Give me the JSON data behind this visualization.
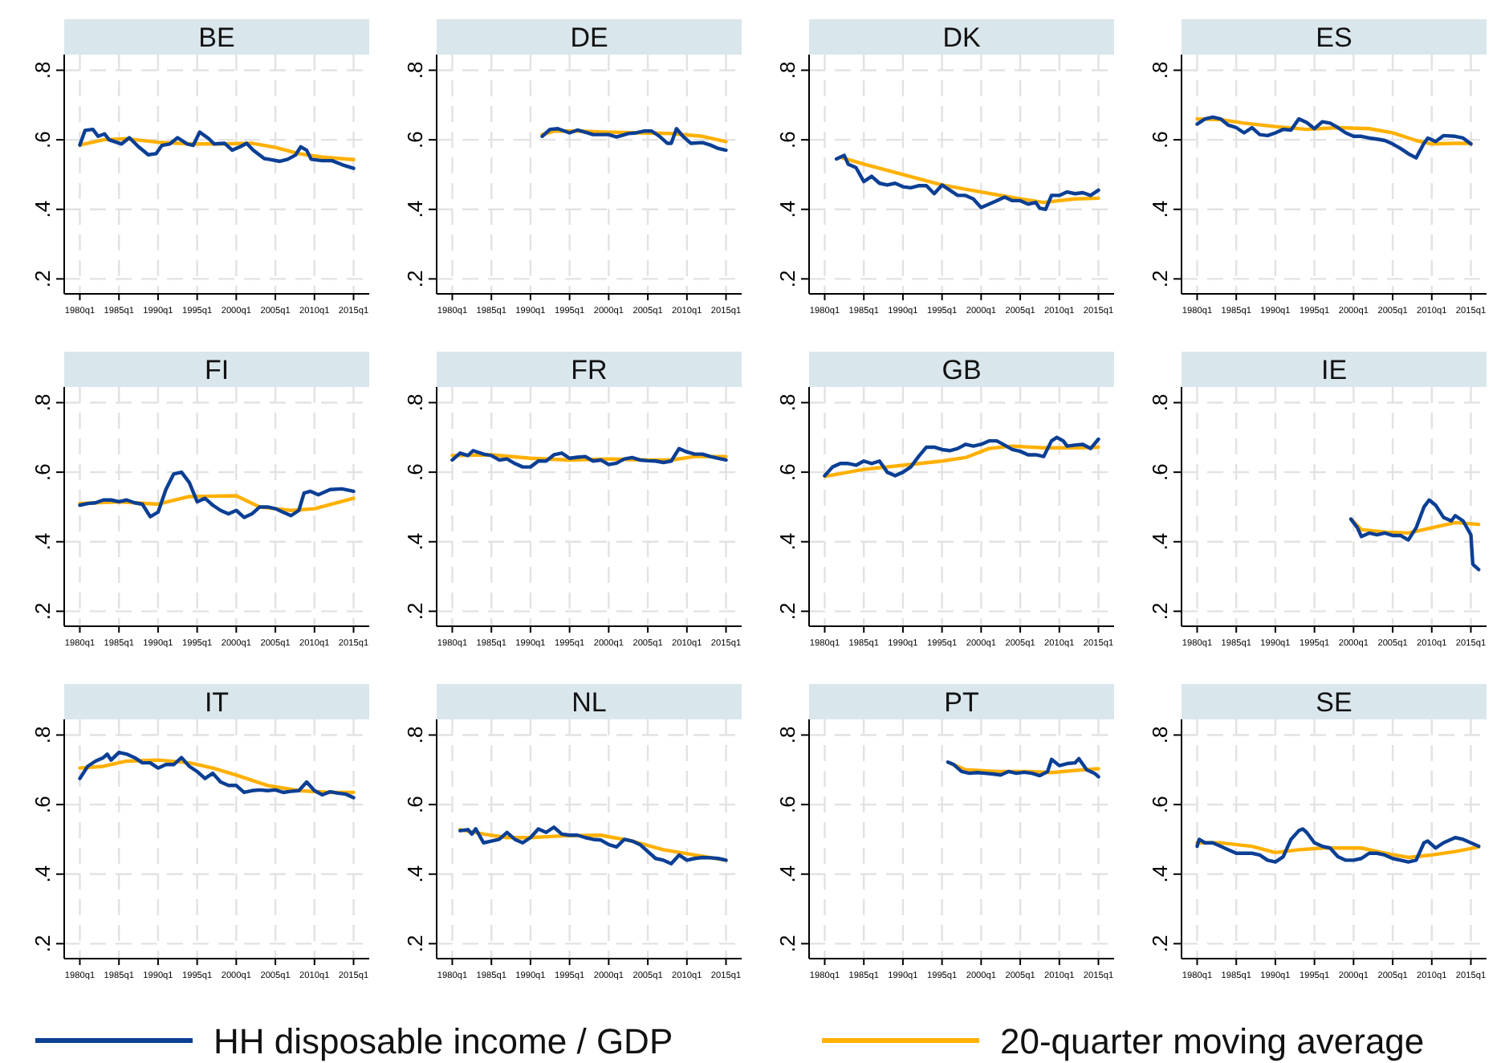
{
  "chart_data": [
    {
      "type": "line",
      "title": "BE",
      "xlim": [
        "1978-01",
        "2017-01"
      ],
      "ylim": [
        0.157,
        0.845
      ],
      "xticks": [
        {
          "value": "1980-01",
          "label": "1980q1"
        },
        {
          "value": "1985-01",
          "label": "1985q1"
        },
        {
          "value": "1990-01",
          "label": "1990q1"
        },
        {
          "value": "1995-01",
          "label": "1995q1"
        },
        {
          "value": "2000-01",
          "label": "2000q1"
        },
        {
          "value": "2005-01",
          "label": "2005q1"
        },
        {
          "value": "2010-01",
          "label": "2010q1"
        },
        {
          "value": "2015-01",
          "label": "2015q1"
        }
      ],
      "yticks": [
        {
          "value": 0.2,
          "label": ".2"
        },
        {
          "value": 0.4,
          "label": ".4"
        },
        {
          "value": 0.6,
          "label": ".6"
        },
        {
          "value": 0.8,
          "label": ".8"
        }
      ],
      "grid": true,
      "series": [
        {
          "color": "#0b3f94",
          "x": [
            "1980-01",
            "1980-09",
            "1981-09",
            "1982-05",
            "1983-03",
            "1983-10",
            "1985-05",
            "1986-05",
            "1987-07",
            "1988-10",
            "1989-10",
            "1990-07",
            "1991-07",
            "1992-07",
            "1993-10",
            "1994-07",
            "1995-05",
            "1996-07",
            "1997-03",
            "1998-07",
            "1999-07",
            "2000-07",
            "2001-05",
            "2002-03",
            "2003-08",
            "2004-03",
            "2005-08",
            "2006-08",
            "2007-08",
            "2008-04",
            "2009-01",
            "2009-08",
            "2011-01",
            "2012-04",
            "2013-08",
            "2015-01"
          ],
          "values": [
            0.585,
            0.627,
            0.63,
            0.61,
            0.617,
            0.6,
            0.588,
            0.606,
            0.58,
            0.557,
            0.56,
            0.584,
            0.588,
            0.606,
            0.588,
            0.584,
            0.622,
            0.603,
            0.588,
            0.59,
            0.57,
            0.58,
            0.59,
            0.57,
            0.546,
            0.544,
            0.538,
            0.544,
            0.556,
            0.58,
            0.57,
            0.544,
            0.54,
            0.54,
            0.528,
            0.518
          ]
        },
        {
          "color": "#ffb000",
          "x": [
            "1980-01",
            "1983-01",
            "1986-01",
            "1990-01",
            "1994-01",
            "1998-01",
            "2002-01",
            "2005-01",
            "2008-01",
            "2011-01",
            "2015-01"
          ],
          "values": [
            0.585,
            0.6,
            0.603,
            0.593,
            0.588,
            0.588,
            0.59,
            0.578,
            0.56,
            0.55,
            0.543
          ]
        }
      ]
    },
    {
      "type": "line",
      "title": "DE",
      "xlim": [
        "1978-01",
        "2017-01"
      ],
      "ylim": [
        0.157,
        0.845
      ],
      "xticks": [
        {
          "value": "1980-01",
          "label": "1980q1"
        },
        {
          "value": "1985-01",
          "label": "1985q1"
        },
        {
          "value": "1990-01",
          "label": "1990q1"
        },
        {
          "value": "1995-01",
          "label": "1995q1"
        },
        {
          "value": "2000-01",
          "label": "2000q1"
        },
        {
          "value": "2005-01",
          "label": "2005q1"
        },
        {
          "value": "2010-01",
          "label": "2010q1"
        },
        {
          "value": "2015-01",
          "label": "2015q1"
        }
      ],
      "yticks": [
        {
          "value": 0.2,
          "label": ".2"
        },
        {
          "value": 0.4,
          "label": ".4"
        },
        {
          "value": 0.6,
          "label": ".6"
        },
        {
          "value": 0.8,
          "label": ".8"
        }
      ],
      "grid": true,
      "series": [
        {
          "color": "#0b3f94",
          "x": [
            "1991-07",
            "1992-07",
            "1993-07",
            "1995-01",
            "1996-01",
            "1997-01",
            "1998-01",
            "2000-01",
            "2001-01",
            "2002-07",
            "2003-07",
            "2004-07",
            "2005-07",
            "2006-07",
            "2007-07",
            "2008-01",
            "2008-09",
            "2009-07",
            "2010-07",
            "2012-01",
            "2013-01",
            "2014-01",
            "2015-01"
          ],
          "values": [
            0.61,
            0.63,
            0.632,
            0.62,
            0.628,
            0.622,
            0.615,
            0.615,
            0.608,
            0.618,
            0.62,
            0.625,
            0.625,
            0.61,
            0.59,
            0.59,
            0.632,
            0.61,
            0.59,
            0.592,
            0.585,
            0.575,
            0.57
          ]
        },
        {
          "color": "#ffb000",
          "x": [
            "1991-07",
            "1993-01",
            "1996-01",
            "2000-01",
            "2004-01",
            "2008-01",
            "2012-01",
            "2015-01"
          ],
          "values": [
            0.615,
            0.625,
            0.625,
            0.622,
            0.62,
            0.618,
            0.61,
            0.595
          ]
        }
      ]
    },
    {
      "type": "line",
      "title": "DK",
      "xlim": [
        "1978-01",
        "2017-01"
      ],
      "ylim": [
        0.157,
        0.845
      ],
      "xticks": [
        {
          "value": "1980-01",
          "label": "1980q1"
        },
        {
          "value": "1985-01",
          "label": "1985q1"
        },
        {
          "value": "1990-01",
          "label": "1990q1"
        },
        {
          "value": "1995-01",
          "label": "1995q1"
        },
        {
          "value": "2000-01",
          "label": "2000q1"
        },
        {
          "value": "2005-01",
          "label": "2005q1"
        },
        {
          "value": "2010-01",
          "label": "2010q1"
        },
        {
          "value": "2015-01",
          "label": "2015q1"
        }
      ],
      "yticks": [
        {
          "value": 0.2,
          "label": ".2"
        },
        {
          "value": 0.4,
          "label": ".4"
        },
        {
          "value": 0.6,
          "label": ".6"
        },
        {
          "value": 0.8,
          "label": ".8"
        }
      ],
      "grid": true,
      "series": [
        {
          "color": "#0b3f94",
          "x": [
            "1981-07",
            "1982-07",
            "1983-01",
            "1984-01",
            "1985-01",
            "1986-01",
            "1987-01",
            "1988-01",
            "1989-01",
            "1990-01",
            "1991-01",
            "1992-01",
            "1993-01",
            "1994-01",
            "1995-01",
            "1996-01",
            "1997-01",
            "1998-01",
            "1999-01",
            "2000-01",
            "2001-01",
            "2002-01",
            "2003-01",
            "2004-01",
            "2005-01",
            "2006-01",
            "2007-01",
            "2007-07",
            "2008-04",
            "2009-01",
            "2010-01",
            "2011-01",
            "2012-01",
            "2013-01",
            "2014-01",
            "2015-01"
          ],
          "values": [
            0.545,
            0.555,
            0.53,
            0.52,
            0.48,
            0.495,
            0.475,
            0.47,
            0.475,
            0.465,
            0.462,
            0.468,
            0.468,
            0.445,
            0.47,
            0.455,
            0.44,
            0.44,
            0.43,
            0.405,
            0.415,
            0.425,
            0.435,
            0.425,
            0.425,
            0.415,
            0.42,
            0.403,
            0.4,
            0.44,
            0.44,
            0.45,
            0.445,
            0.448,
            0.44,
            0.455
          ]
        },
        {
          "color": "#ffb000",
          "x": [
            "1982-01",
            "1985-01",
            "1990-01",
            "1995-01",
            "2000-01",
            "2005-01",
            "2008-01",
            "2012-01",
            "2015-01"
          ],
          "values": [
            0.55,
            0.53,
            0.5,
            0.47,
            0.45,
            0.43,
            0.42,
            0.43,
            0.432
          ]
        }
      ]
    },
    {
      "type": "line",
      "title": "ES",
      "xlim": [
        "1978-01",
        "2017-01"
      ],
      "ylim": [
        0.157,
        0.845
      ],
      "xticks": [
        {
          "value": "1980-01",
          "label": "1980q1"
        },
        {
          "value": "1985-01",
          "label": "1985q1"
        },
        {
          "value": "1990-01",
          "label": "1990q1"
        },
        {
          "value": "1995-01",
          "label": "1995q1"
        },
        {
          "value": "2000-01",
          "label": "2000q1"
        },
        {
          "value": "2005-01",
          "label": "2005q1"
        },
        {
          "value": "2010-01",
          "label": "2010q1"
        },
        {
          "value": "2015-01",
          "label": "2015q1"
        }
      ],
      "yticks": [
        {
          "value": 0.2,
          "label": ".2"
        },
        {
          "value": 0.4,
          "label": ".4"
        },
        {
          "value": 0.6,
          "label": ".6"
        },
        {
          "value": 0.8,
          "label": ".8"
        }
      ],
      "grid": true,
      "series": [
        {
          "color": "#0b3f94",
          "x": [
            "1980-01",
            "1981-01",
            "1982-01",
            "1983-01",
            "1984-01",
            "1985-01",
            "1986-01",
            "1987-01",
            "1988-01",
            "1989-01",
            "1990-01",
            "1991-01",
            "1992-01",
            "1993-01",
            "1994-01",
            "1995-01",
            "1996-01",
            "1997-01",
            "1998-01",
            "1999-01",
            "2000-01",
            "2001-01",
            "2002-01",
            "2003-01",
            "2004-01",
            "2005-01",
            "2006-01",
            "2007-01",
            "2008-01",
            "2009-01",
            "2009-07",
            "2010-07",
            "2011-07",
            "2013-01",
            "2014-01",
            "2015-01"
          ],
          "values": [
            0.645,
            0.66,
            0.665,
            0.66,
            0.642,
            0.635,
            0.62,
            0.635,
            0.615,
            0.612,
            0.62,
            0.63,
            0.628,
            0.66,
            0.65,
            0.632,
            0.652,
            0.648,
            0.635,
            0.62,
            0.61,
            0.61,
            0.605,
            0.602,
            0.598,
            0.588,
            0.575,
            0.56,
            0.548,
            0.59,
            0.605,
            0.595,
            0.612,
            0.61,
            0.605,
            0.588
          ]
        },
        {
          "color": "#ffb000",
          "x": [
            "1980-01",
            "1983-01",
            "1986-01",
            "1990-01",
            "1994-01",
            "1998-01",
            "2002-01",
            "2005-01",
            "2008-01",
            "2010-01",
            "2013-01",
            "2015-01"
          ],
          "values": [
            0.66,
            0.658,
            0.648,
            0.638,
            0.63,
            0.635,
            0.632,
            0.62,
            0.598,
            0.588,
            0.59,
            0.59
          ]
        }
      ]
    },
    {
      "type": "line",
      "title": "FI",
      "xlim": [
        "1978-01",
        "2017-01"
      ],
      "ylim": [
        0.157,
        0.845
      ],
      "xticks": [
        {
          "value": "1980-01",
          "label": "1980q1"
        },
        {
          "value": "1985-01",
          "label": "1985q1"
        },
        {
          "value": "1990-01",
          "label": "1990q1"
        },
        {
          "value": "1995-01",
          "label": "1995q1"
        },
        {
          "value": "2000-01",
          "label": "2000q1"
        },
        {
          "value": "2005-01",
          "label": "2005q1"
        },
        {
          "value": "2010-01",
          "label": "2010q1"
        },
        {
          "value": "2015-01",
          "label": "2015q1"
        }
      ],
      "yticks": [
        {
          "value": 0.2,
          "label": ".2"
        },
        {
          "value": 0.4,
          "label": ".4"
        },
        {
          "value": 0.6,
          "label": ".6"
        },
        {
          "value": 0.8,
          "label": ".8"
        }
      ],
      "grid": true,
      "series": [
        {
          "color": "#0b3f94",
          "x": [
            "1980-01",
            "1981-01",
            "1982-01",
            "1983-01",
            "1984-01",
            "1985-01",
            "1986-01",
            "1987-01",
            "1988-01",
            "1989-01",
            "1990-01",
            "1991-01",
            "1992-01",
            "1993-01",
            "1994-01",
            "1995-01",
            "1996-01",
            "1997-01",
            "1998-01",
            "1999-01",
            "2000-01",
            "2001-01",
            "2002-01",
            "2003-01",
            "2004-01",
            "2005-01",
            "2006-01",
            "2007-01",
            "2008-01",
            "2008-09",
            "2009-07",
            "2010-07",
            "2012-01",
            "2013-07",
            "2015-01"
          ],
          "values": [
            0.505,
            0.51,
            0.512,
            0.52,
            0.52,
            0.515,
            0.52,
            0.512,
            0.508,
            0.472,
            0.485,
            0.55,
            0.595,
            0.6,
            0.57,
            0.515,
            0.525,
            0.505,
            0.49,
            0.48,
            0.49,
            0.47,
            0.48,
            0.5,
            0.5,
            0.495,
            0.485,
            0.475,
            0.49,
            0.54,
            0.545,
            0.535,
            0.55,
            0.552,
            0.545
          ]
        },
        {
          "color": "#ffb000",
          "x": [
            "1980-01",
            "1985-01",
            "1990-01",
            "1994-01",
            "2000-01",
            "2003-01",
            "2007-01",
            "2010-01",
            "2015-01"
          ],
          "values": [
            0.51,
            0.515,
            0.508,
            0.53,
            0.532,
            0.5,
            0.49,
            0.495,
            0.525
          ]
        }
      ]
    },
    {
      "type": "line",
      "title": "FR",
      "xlim": [
        "1978-01",
        "2017-01"
      ],
      "ylim": [
        0.157,
        0.845
      ],
      "xticks": [
        {
          "value": "1980-01",
          "label": "1980q1"
        },
        {
          "value": "1985-01",
          "label": "1985q1"
        },
        {
          "value": "1990-01",
          "label": "1990q1"
        },
        {
          "value": "1995-01",
          "label": "1995q1"
        },
        {
          "value": "2000-01",
          "label": "2000q1"
        },
        {
          "value": "2005-01",
          "label": "2005q1"
        },
        {
          "value": "2010-01",
          "label": "2010q1"
        },
        {
          "value": "2015-01",
          "label": "2015q1"
        }
      ],
      "yticks": [
        {
          "value": 0.2,
          "label": ".2"
        },
        {
          "value": 0.4,
          "label": ".4"
        },
        {
          "value": 0.6,
          "label": ".6"
        },
        {
          "value": 0.8,
          "label": ".8"
        }
      ],
      "grid": true,
      "series": [
        {
          "color": "#0b3f94",
          "x": [
            "1980-01",
            "1981-01",
            "1982-01",
            "1982-09",
            "1984-01",
            "1985-01",
            "1986-01",
            "1987-01",
            "1988-01",
            "1989-01",
            "1990-01",
            "1991-01",
            "1992-01",
            "1993-01",
            "1994-01",
            "1995-01",
            "1996-01",
            "1997-01",
            "1998-01",
            "1999-01",
            "2000-01",
            "2001-01",
            "2002-01",
            "2003-01",
            "2004-01",
            "2005-01",
            "2006-01",
            "2007-01",
            "2008-01",
            "2009-01",
            "2010-01",
            "2011-01",
            "2012-01",
            "2013-01",
            "2014-01",
            "2015-01"
          ],
          "values": [
            0.635,
            0.655,
            0.648,
            0.662,
            0.652,
            0.648,
            0.635,
            0.638,
            0.625,
            0.615,
            0.615,
            0.632,
            0.632,
            0.65,
            0.655,
            0.64,
            0.643,
            0.645,
            0.632,
            0.635,
            0.622,
            0.626,
            0.638,
            0.642,
            0.635,
            0.633,
            0.632,
            0.628,
            0.632,
            0.668,
            0.658,
            0.652,
            0.652,
            0.645,
            0.64,
            0.635
          ]
        },
        {
          "color": "#ffb000",
          "x": [
            "1980-01",
            "1985-01",
            "1990-01",
            "1995-01",
            "2000-01",
            "2005-01",
            "2008-01",
            "2011-01",
            "2015-01"
          ],
          "values": [
            0.648,
            0.65,
            0.64,
            0.635,
            0.638,
            0.635,
            0.635,
            0.645,
            0.645
          ]
        }
      ]
    },
    {
      "type": "line",
      "title": "GB",
      "xlim": [
        "1978-01",
        "2017-01"
      ],
      "ylim": [
        0.157,
        0.845
      ],
      "xticks": [
        {
          "value": "1980-01",
          "label": "1980q1"
        },
        {
          "value": "1985-01",
          "label": "1985q1"
        },
        {
          "value": "1990-01",
          "label": "1990q1"
        },
        {
          "value": "1995-01",
          "label": "1995q1"
        },
        {
          "value": "2000-01",
          "label": "2000q1"
        },
        {
          "value": "2005-01",
          "label": "2005q1"
        },
        {
          "value": "2010-01",
          "label": "2010q1"
        },
        {
          "value": "2015-01",
          "label": "2015q1"
        }
      ],
      "yticks": [
        {
          "value": 0.2,
          "label": ".2"
        },
        {
          "value": 0.4,
          "label": ".4"
        },
        {
          "value": 0.6,
          "label": ".6"
        },
        {
          "value": 0.8,
          "label": ".8"
        }
      ],
      "grid": true,
      "series": [
        {
          "color": "#0b3f94",
          "x": [
            "1980-01",
            "1981-01",
            "1982-01",
            "1983-01",
            "1984-01",
            "1985-01",
            "1986-01",
            "1987-01",
            "1988-01",
            "1989-01",
            "1990-01",
            "1991-01",
            "1992-01",
            "1993-01",
            "1994-01",
            "1995-01",
            "1996-01",
            "1997-01",
            "1998-01",
            "1999-01",
            "2000-01",
            "2001-01",
            "2002-01",
            "2003-01",
            "2004-01",
            "2005-01",
            "2006-01",
            "2007-01",
            "2008-01",
            "2009-01",
            "2009-09",
            "2010-07",
            "2011-01",
            "2012-01",
            "2013-01",
            "2014-01",
            "2015-01"
          ],
          "values": [
            0.59,
            0.615,
            0.625,
            0.625,
            0.62,
            0.632,
            0.625,
            0.632,
            0.6,
            0.59,
            0.6,
            0.615,
            0.645,
            0.672,
            0.672,
            0.665,
            0.662,
            0.668,
            0.68,
            0.675,
            0.68,
            0.69,
            0.69,
            0.678,
            0.665,
            0.66,
            0.65,
            0.65,
            0.645,
            0.69,
            0.7,
            0.69,
            0.675,
            0.678,
            0.68,
            0.668,
            0.695
          ]
        },
        {
          "color": "#ffb000",
          "x": [
            "1980-01",
            "1985-01",
            "1990-01",
            "1995-01",
            "1998-01",
            "2001-01",
            "2004-01",
            "2008-01",
            "2012-01",
            "2015-01"
          ],
          "values": [
            0.588,
            0.608,
            0.62,
            0.632,
            0.642,
            0.668,
            0.675,
            0.67,
            0.67,
            0.672
          ]
        }
      ]
    },
    {
      "type": "line",
      "title": "IE",
      "xlim": [
        "1978-01",
        "2017-01"
      ],
      "ylim": [
        0.157,
        0.845
      ],
      "xticks": [
        {
          "value": "1980-01",
          "label": "1980q1"
        },
        {
          "value": "1985-01",
          "label": "1985q1"
        },
        {
          "value": "1990-01",
          "label": "1990q1"
        },
        {
          "value": "1995-01",
          "label": "1995q1"
        },
        {
          "value": "2000-01",
          "label": "2000q1"
        },
        {
          "value": "2005-01",
          "label": "2005q1"
        },
        {
          "value": "2010-01",
          "label": "2010q1"
        },
        {
          "value": "2015-01",
          "label": "2015q1"
        }
      ],
      "yticks": [
        {
          "value": 0.2,
          "label": ".2"
        },
        {
          "value": 0.4,
          "label": ".4"
        },
        {
          "value": 0.6,
          "label": ".6"
        },
        {
          "value": 0.8,
          "label": ".8"
        }
      ],
      "grid": true,
      "series": [
        {
          "color": "#0b3f94",
          "x": [
            "1999-09",
            "2000-07",
            "2001-01",
            "2002-01",
            "2003-01",
            "2004-01",
            "2005-01",
            "2006-01",
            "2007-01",
            "2008-01",
            "2009-01",
            "2009-09",
            "2010-07",
            "2011-07",
            "2012-07",
            "2013-01",
            "2014-01",
            "2015-01",
            "2015-04",
            "2016-01"
          ],
          "values": [
            0.465,
            0.44,
            0.415,
            0.425,
            0.42,
            0.425,
            0.418,
            0.418,
            0.405,
            0.44,
            0.5,
            0.52,
            0.505,
            0.47,
            0.46,
            0.475,
            0.46,
            0.42,
            0.335,
            0.32
          ]
        },
        {
          "color": "#ffb000",
          "x": [
            "1999-09",
            "2001-01",
            "2004-01",
            "2007-01",
            "2010-01",
            "2013-01",
            "2016-01"
          ],
          "values": [
            0.465,
            0.435,
            0.428,
            0.425,
            0.44,
            0.455,
            0.45
          ]
        }
      ]
    },
    {
      "type": "line",
      "title": "IT",
      "xlim": [
        "1978-01",
        "2017-01"
      ],
      "ylim": [
        0.157,
        0.845
      ],
      "xticks": [
        {
          "value": "1980-01",
          "label": "1980q1"
        },
        {
          "value": "1985-01",
          "label": "1985q1"
        },
        {
          "value": "1990-01",
          "label": "1990q1"
        },
        {
          "value": "1995-01",
          "label": "1995q1"
        },
        {
          "value": "2000-01",
          "label": "2000q1"
        },
        {
          "value": "2005-01",
          "label": "2005q1"
        },
        {
          "value": "2010-01",
          "label": "2010q1"
        },
        {
          "value": "2015-01",
          "label": "2015q1"
        }
      ],
      "yticks": [
        {
          "value": 0.2,
          "label": ".2"
        },
        {
          "value": 0.4,
          "label": ".4"
        },
        {
          "value": 0.6,
          "label": ".6"
        },
        {
          "value": 0.8,
          "label": ".8"
        }
      ],
      "grid": true,
      "series": [
        {
          "color": "#0b3f94",
          "x": [
            "1980-01",
            "1981-01",
            "1982-01",
            "1983-01",
            "1983-07",
            "1984-01",
            "1985-01",
            "1986-01",
            "1987-01",
            "1988-01",
            "1989-01",
            "1990-01",
            "1991-01",
            "1992-01",
            "1993-01",
            "1994-01",
            "1995-01",
            "1996-01",
            "1997-01",
            "1998-01",
            "1999-01",
            "2000-01",
            "2001-01",
            "2002-01",
            "2003-01",
            "2004-01",
            "2005-01",
            "2006-01",
            "2007-01",
            "2008-01",
            "2009-01",
            "2010-01",
            "2011-01",
            "2012-01",
            "2013-01",
            "2014-01",
            "2015-01"
          ],
          "values": [
            0.675,
            0.71,
            0.725,
            0.735,
            0.745,
            0.728,
            0.75,
            0.745,
            0.735,
            0.72,
            0.72,
            0.705,
            0.715,
            0.715,
            0.735,
            0.71,
            0.695,
            0.675,
            0.69,
            0.665,
            0.655,
            0.655,
            0.635,
            0.64,
            0.642,
            0.64,
            0.642,
            0.635,
            0.638,
            0.64,
            0.665,
            0.64,
            0.628,
            0.637,
            0.633,
            0.63,
            0.62
          ]
        },
        {
          "color": "#ffb000",
          "x": [
            "1980-01",
            "1983-01",
            "1986-01",
            "1990-01",
            "1994-01",
            "1997-01",
            "2000-01",
            "2004-01",
            "2008-01",
            "2012-01",
            "2015-01"
          ],
          "values": [
            0.705,
            0.71,
            0.725,
            0.728,
            0.72,
            0.705,
            0.685,
            0.655,
            0.64,
            0.635,
            0.635
          ]
        }
      ]
    },
    {
      "type": "line",
      "title": "NL",
      "xlim": [
        "1978-01",
        "2017-01"
      ],
      "ylim": [
        0.157,
        0.845
      ],
      "xticks": [
        {
          "value": "1980-01",
          "label": "1980q1"
        },
        {
          "value": "1985-01",
          "label": "1985q1"
        },
        {
          "value": "1990-01",
          "label": "1990q1"
        },
        {
          "value": "1995-01",
          "label": "1995q1"
        },
        {
          "value": "2000-01",
          "label": "2000q1"
        },
        {
          "value": "2005-01",
          "label": "2005q1"
        },
        {
          "value": "2010-01",
          "label": "2010q1"
        },
        {
          "value": "2015-01",
          "label": "2015q1"
        }
      ],
      "yticks": [
        {
          "value": 0.2,
          "label": ".2"
        },
        {
          "value": 0.4,
          "label": ".4"
        },
        {
          "value": 0.6,
          "label": ".6"
        },
        {
          "value": 0.8,
          "label": ".8"
        }
      ],
      "grid": true,
      "series": [
        {
          "color": "#0b3f94",
          "x": [
            "1981-01",
            "1982-01",
            "1982-07",
            "1983-01",
            "1984-01",
            "1985-01",
            "1986-01",
            "1987-01",
            "1988-01",
            "1989-01",
            "1990-01",
            "1991-01",
            "1992-01",
            "1993-01",
            "1994-01",
            "1995-01",
            "1996-01",
            "1997-01",
            "1998-01",
            "1999-01",
            "2000-01",
            "2001-01",
            "2002-01",
            "2003-01",
            "2004-01",
            "2005-01",
            "2006-01",
            "2007-01",
            "2008-01",
            "2009-01",
            "2010-01",
            "2011-01",
            "2012-01",
            "2013-01",
            "2014-01",
            "2015-01"
          ],
          "values": [
            0.525,
            0.528,
            0.515,
            0.53,
            0.49,
            0.495,
            0.5,
            0.52,
            0.5,
            0.49,
            0.505,
            0.53,
            0.52,
            0.535,
            0.515,
            0.512,
            0.512,
            0.505,
            0.5,
            0.498,
            0.485,
            0.478,
            0.5,
            0.495,
            0.485,
            0.465,
            0.445,
            0.44,
            0.43,
            0.455,
            0.44,
            0.445,
            0.448,
            0.447,
            0.445,
            0.44
          ]
        },
        {
          "color": "#ffb000",
          "x": [
            "1981-01",
            "1984-01",
            "1987-01",
            "1990-01",
            "1994-01",
            "1999-01",
            "2003-01",
            "2007-01",
            "2011-01",
            "2015-01"
          ],
          "values": [
            0.528,
            0.515,
            0.505,
            0.505,
            0.51,
            0.512,
            0.495,
            0.47,
            0.455,
            0.44
          ]
        }
      ]
    },
    {
      "type": "line",
      "title": "PT",
      "xlim": [
        "1978-01",
        "2017-01"
      ],
      "ylim": [
        0.157,
        0.845
      ],
      "xticks": [
        {
          "value": "1980-01",
          "label": "1980q1"
        },
        {
          "value": "1985-01",
          "label": "1985q1"
        },
        {
          "value": "1990-01",
          "label": "1990q1"
        },
        {
          "value": "1995-01",
          "label": "1995q1"
        },
        {
          "value": "2000-01",
          "label": "2000q1"
        },
        {
          "value": "2005-01",
          "label": "2005q1"
        },
        {
          "value": "2010-01",
          "label": "2010q1"
        },
        {
          "value": "2015-01",
          "label": "2015q1"
        }
      ],
      "yticks": [
        {
          "value": 0.2,
          "label": ".2"
        },
        {
          "value": 0.4,
          "label": ".4"
        },
        {
          "value": 0.6,
          "label": ".6"
        },
        {
          "value": 0.8,
          "label": ".8"
        }
      ],
      "grid": true,
      "series": [
        {
          "color": "#0b3f94",
          "x": [
            "1995-10",
            "1996-07",
            "1997-07",
            "1998-07",
            "1999-07",
            "2000-07",
            "2001-07",
            "2002-07",
            "2003-07",
            "2004-07",
            "2005-07",
            "2006-07",
            "2007-07",
            "2008-07",
            "2009-01",
            "2010-01",
            "2011-01",
            "2012-01",
            "2012-07",
            "2013-07",
            "2014-07",
            "2015-01"
          ],
          "values": [
            0.722,
            0.715,
            0.695,
            0.69,
            0.692,
            0.69,
            0.688,
            0.685,
            0.695,
            0.69,
            0.693,
            0.69,
            0.683,
            0.695,
            0.73,
            0.712,
            0.718,
            0.72,
            0.732,
            0.7,
            0.69,
            0.68
          ]
        },
        {
          "color": "#ffb000",
          "x": [
            "1996-01",
            "1998-01",
            "2002-01",
            "2006-01",
            "2009-01",
            "2012-01",
            "2015-01"
          ],
          "values": [
            0.72,
            0.7,
            0.695,
            0.695,
            0.692,
            0.698,
            0.703
          ]
        }
      ]
    },
    {
      "type": "line",
      "title": "SE",
      "xlim": [
        "1978-01",
        "2017-01"
      ],
      "ylim": [
        0.157,
        0.845
      ],
      "xticks": [
        {
          "value": "1980-01",
          "label": "1980q1"
        },
        {
          "value": "1985-01",
          "label": "1985q1"
        },
        {
          "value": "1990-01",
          "label": "1990q1"
        },
        {
          "value": "1995-01",
          "label": "1995q1"
        },
        {
          "value": "2000-01",
          "label": "2000q1"
        },
        {
          "value": "2005-01",
          "label": "2005q1"
        },
        {
          "value": "2010-01",
          "label": "2010q1"
        },
        {
          "value": "2015-01",
          "label": "2015q1"
        }
      ],
      "yticks": [
        {
          "value": 0.2,
          "label": ".2"
        },
        {
          "value": 0.4,
          "label": ".4"
        },
        {
          "value": 0.6,
          "label": ".6"
        },
        {
          "value": 0.8,
          "label": ".8"
        }
      ],
      "grid": true,
      "legend": "bottom",
      "series": [
        {
          "name": "HH disposable income / GDP",
          "color": "#0b3f94",
          "x": [
            "1980-01",
            "1980-04",
            "1981-01",
            "1982-01",
            "1983-01",
            "1984-01",
            "1985-01",
            "1986-01",
            "1987-01",
            "1988-01",
            "1989-01",
            "1990-01",
            "1991-01",
            "1992-01",
            "1993-01",
            "1993-07",
            "1994-01",
            "1995-01",
            "1996-01",
            "1997-01",
            "1998-01",
            "1999-01",
            "2000-01",
            "2001-01",
            "2002-01",
            "2003-01",
            "2004-01",
            "2005-01",
            "2006-01",
            "2007-01",
            "2008-01",
            "2009-01",
            "2009-07",
            "2010-07",
            "2011-07",
            "2013-01",
            "2014-01",
            "2015-01",
            "2016-01"
          ],
          "values": [
            0.48,
            0.5,
            0.49,
            0.49,
            0.48,
            0.47,
            0.46,
            0.46,
            0.46,
            0.455,
            0.44,
            0.435,
            0.45,
            0.5,
            0.525,
            0.53,
            0.52,
            0.49,
            0.48,
            0.475,
            0.45,
            0.44,
            0.44,
            0.445,
            0.46,
            0.46,
            0.455,
            0.445,
            0.44,
            0.435,
            0.44,
            0.49,
            0.495,
            0.475,
            0.49,
            0.505,
            0.5,
            0.49,
            0.48
          ]
        },
        {
          "name": "20-quarter moving average",
          "color": "#ffb000",
          "x": [
            "1980-01",
            "1983-01",
            "1987-01",
            "1990-01",
            "1993-01",
            "1996-01",
            "2001-01",
            "2004-01",
            "2007-01",
            "2010-01",
            "2013-01",
            "2016-01"
          ],
          "values": [
            0.49,
            0.49,
            0.48,
            0.462,
            0.47,
            0.475,
            0.475,
            0.46,
            0.448,
            0.455,
            0.465,
            0.478
          ]
        }
      ]
    }
  ]
}
